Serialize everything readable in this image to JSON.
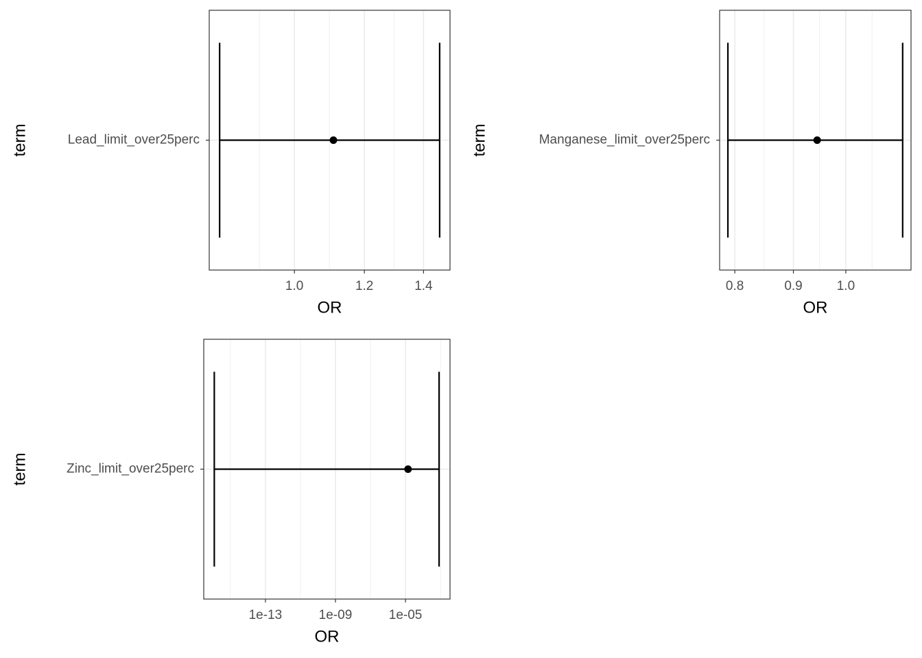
{
  "chart_data": [
    {
      "type": "pointrange",
      "x_label": "OR",
      "y_label": "term",
      "categories": [
        "Lead_limit_over25perc"
      ],
      "values": [
        1.107
      ],
      "lower": [
        0.823
      ],
      "upper": [
        1.46
      ],
      "color": "#000000",
      "log_x": true,
      "grid": true,
      "minor_grid": true,
      "xlim": [
        0.801,
        1.5
      ],
      "xticks": [
        {
          "value": 1.0,
          "label": "1.0"
        },
        1.2,
        1.4
      ]
    },
    {
      "type": "pointrange",
      "x_label": "OR",
      "y_label": "term",
      "categories": [
        "Manganese_limit_over25perc"
      ],
      "values": [
        0.944
      ],
      "lower": [
        0.789
      ],
      "upper": [
        1.121
      ],
      "color": "#000000",
      "log_x": true,
      "grid": true,
      "minor_grid": true,
      "xlim": [
        0.776,
        1.14
      ],
      "xticks": [
        0.8,
        0.9,
        {
          "value": 1.0,
          "label": "1.0"
        }
      ]
    },
    {
      "type": "pointrange",
      "x_label": "OR",
      "y_label": "term",
      "categories": [
        "Zinc_limit_over25perc"
      ],
      "values": [
        1.4e-05
      ],
      "lower": [
        1.2e-16
      ],
      "upper": [
        0.00083
      ],
      "color": "#000000",
      "log_x": true,
      "grid": true,
      "minor_grid": true,
      "xlim": [
        3e-17,
        0.0035
      ],
      "xticks": [
        {
          "value": 1e-13,
          "label": "1e-13"
        },
        {
          "value": 1e-09,
          "label": "1e-09"
        },
        {
          "value": 1e-05,
          "label": "1e-05"
        }
      ]
    }
  ]
}
